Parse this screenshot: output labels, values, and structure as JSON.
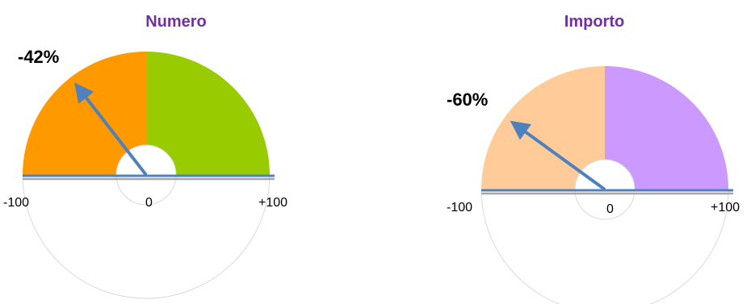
{
  "chart_data": [
    {
      "type": "gauge",
      "title": "Numero",
      "value": -42,
      "value_label": "-42%",
      "range": [
        -100,
        100
      ],
      "tick_labels": {
        "min": "-100",
        "center": "0",
        "max": "+100"
      },
      "colors": {
        "title": "#7030A0",
        "negative": "#FF9900",
        "positive": "#99CC00",
        "needle": "#4F81BD",
        "baseline": "#4F81BD"
      }
    },
    {
      "type": "gauge",
      "title": "Importo",
      "value": -60,
      "value_label": "-60%",
      "range": [
        -100,
        100
      ],
      "tick_labels": {
        "min": "-100",
        "center": "0",
        "max": "+100"
      },
      "colors": {
        "title": "#7030A0",
        "negative": "#FFCC99",
        "positive": "#CC99FF",
        "needle": "#4F81BD",
        "baseline": "#4F81BD"
      }
    }
  ]
}
